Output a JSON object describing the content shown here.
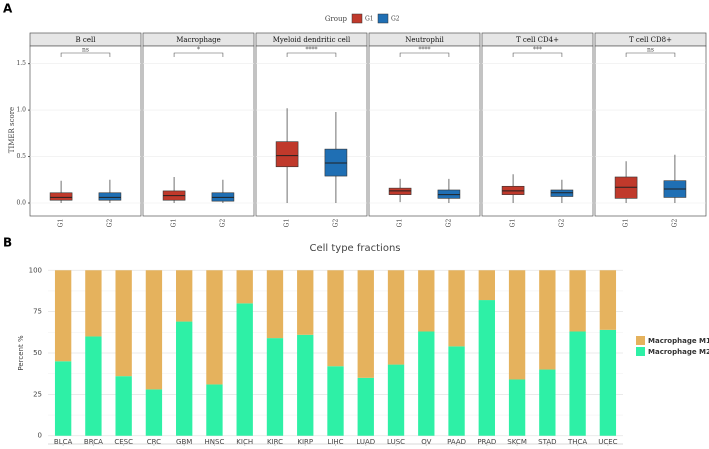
{
  "chart_data": [
    {
      "type": "box",
      "panel_label": "A",
      "legend_title": "Group",
      "y_label": "TIMER score",
      "categories": [
        "G1",
        "G2"
      ],
      "series": [
        {
          "name": "G1",
          "color": "#c0392b"
        },
        {
          "name": "G2",
          "color": "#1f6fb4"
        }
      ],
      "ylim": [
        -0.14,
        1.69
      ],
      "yticks": [
        {
          "value": 0,
          "label": "0.0"
        },
        0.5,
        {
          "value": 1,
          "label": "1.0"
        },
        1.5
      ],
      "grid": true,
      "facets": [
        {
          "title": "B cell",
          "annotation": "ns",
          "boxes": [
            {
              "min": 0.0,
              "q1": 0.03,
              "median": 0.06,
              "q3": 0.11,
              "max": 0.24
            },
            {
              "min": 0.0,
              "q1": 0.03,
              "median": 0.06,
              "q3": 0.11,
              "max": 0.25
            }
          ]
        },
        {
          "title": "Macrophage",
          "annotation": "*",
          "boxes": [
            {
              "min": 0.0,
              "q1": 0.03,
              "median": 0.08,
              "q3": 0.13,
              "max": 0.28
            },
            {
              "min": 0.0,
              "q1": 0.02,
              "median": 0.06,
              "q3": 0.11,
              "max": 0.25
            }
          ]
        },
        {
          "title": "Myeloid dendritic cell",
          "annotation": "****",
          "boxes": [
            {
              "min": 0.0,
              "q1": 0.39,
              "median": 0.51,
              "q3": 0.66,
              "max": 1.02
            },
            {
              "min": 0.0,
              "q1": 0.29,
              "median": 0.43,
              "q3": 0.58,
              "max": 0.98
            }
          ]
        },
        {
          "title": "Neutrophil",
          "annotation": "****",
          "boxes": [
            {
              "min": 0.01,
              "q1": 0.09,
              "median": 0.13,
              "q3": 0.16,
              "max": 0.26
            },
            {
              "min": 0.0,
              "q1": 0.05,
              "median": 0.09,
              "q3": 0.14,
              "max": 0.26
            }
          ]
        },
        {
          "title": "T cell CD4+",
          "annotation": "***",
          "boxes": [
            {
              "min": 0.0,
              "q1": 0.09,
              "median": 0.13,
              "q3": 0.18,
              "max": 0.31
            },
            {
              "min": 0.0,
              "q1": 0.07,
              "median": 0.11,
              "q3": 0.14,
              "max": 0.25
            }
          ]
        },
        {
          "title": "T cell CD8+",
          "annotation": "ns",
          "boxes": [
            {
              "min": 0.0,
              "q1": 0.05,
              "median": 0.17,
              "q3": 0.28,
              "max": 0.45
            },
            {
              "min": 0.0,
              "q1": 0.06,
              "median": 0.15,
              "q3": 0.24,
              "max": 0.52
            }
          ]
        }
      ]
    },
    {
      "type": "stacked_bar",
      "panel_label": "B",
      "title": "Cell type fractions",
      "y_label": "Percent %",
      "categories": [
        "BLCA",
        "BRCA",
        "CESC",
        "CRC",
        "GBM",
        "HNSC",
        "KICH",
        "KIRC",
        "KIRP",
        "LIHC",
        "LUAD",
        "LUSC",
        "OV",
        "PAAD",
        "PRAD",
        "SKCM",
        "STAD",
        "THCA",
        "UCEC"
      ],
      "series": [
        {
          "name": "Macrophage M2",
          "color": "#2ef0a6",
          "values": [
            45,
            60,
            36,
            28,
            69,
            31,
            80,
            59,
            61,
            42,
            35,
            43,
            63,
            54,
            82,
            34,
            40,
            63,
            64
          ]
        },
        {
          "name": "Macrophage M1",
          "color": "#e5b25d",
          "values": [
            55,
            40,
            64,
            72,
            31,
            69,
            20,
            41,
            39,
            58,
            65,
            57,
            37,
            46,
            18,
            66,
            60,
            37,
            36
          ]
        }
      ],
      "legend": "right",
      "ylim": [
        -5,
        105
      ],
      "yticks": [
        0,
        25,
        50,
        75,
        100
      ],
      "grid": true
    }
  ]
}
